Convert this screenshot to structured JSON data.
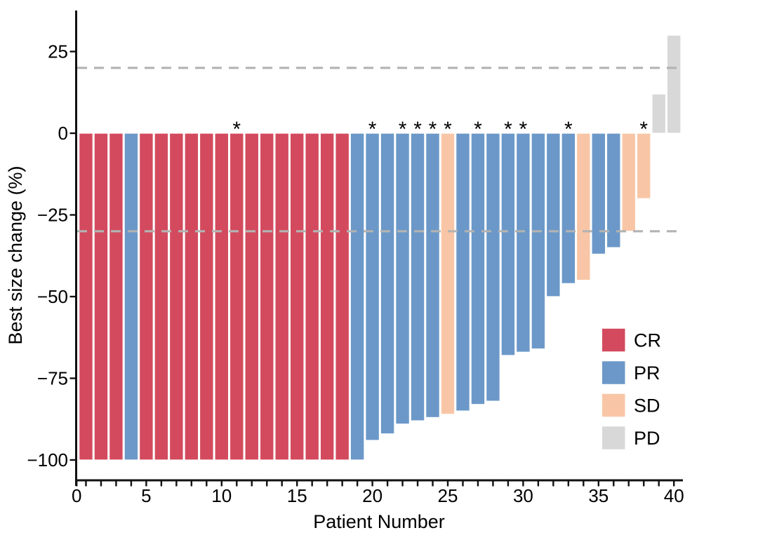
{
  "chart_data": {
    "type": "bar",
    "chart_kind": "waterfall",
    "title": "",
    "xlabel": "Patient Number",
    "ylabel": "Best size change (%)",
    "x_ticks_labeled": [
      0,
      5,
      10,
      15,
      20,
      25,
      30,
      35,
      40
    ],
    "x_tick_minor_every": 1,
    "xlim": [
      0,
      41
    ],
    "y_ticks": [
      25,
      0,
      -25,
      -50,
      -75,
      -100
    ],
    "ylim": [
      -100,
      35
    ],
    "grid": "off",
    "legend_position": "inside-bottom-right",
    "annotation_symbol": "*",
    "reference_lines": [
      {
        "y": 20,
        "style": "dashed",
        "color": "#B3B3B3"
      },
      {
        "y": -30,
        "style": "dashed",
        "color": "#B3B3B3"
      }
    ],
    "colors": {
      "CR": "#D34A5E",
      "PR": "#6B98C8",
      "SD": "#F8C6A6",
      "PD": "#D8D8D8"
    },
    "legend": [
      {
        "label": "CR",
        "color": "#D34A5E"
      },
      {
        "label": "PR",
        "color": "#6B98C8"
      },
      {
        "label": "SD",
        "color": "#F8C6A6"
      },
      {
        "label": "PD",
        "color": "#D8D8D8"
      }
    ],
    "patients": [
      {
        "patient": 1,
        "value": -100,
        "response": "CR",
        "annotated": false
      },
      {
        "patient": 2,
        "value": -100,
        "response": "CR",
        "annotated": false
      },
      {
        "patient": 3,
        "value": -100,
        "response": "CR",
        "annotated": false
      },
      {
        "patient": 4,
        "value": -100,
        "response": "PR",
        "annotated": false
      },
      {
        "patient": 5,
        "value": -100,
        "response": "CR",
        "annotated": false
      },
      {
        "patient": 6,
        "value": -100,
        "response": "CR",
        "annotated": false
      },
      {
        "patient": 7,
        "value": -100,
        "response": "CR",
        "annotated": false
      },
      {
        "patient": 8,
        "value": -100,
        "response": "CR",
        "annotated": false
      },
      {
        "patient": 9,
        "value": -100,
        "response": "CR",
        "annotated": false
      },
      {
        "patient": 10,
        "value": -100,
        "response": "CR",
        "annotated": false
      },
      {
        "patient": 11,
        "value": -100,
        "response": "CR",
        "annotated": true
      },
      {
        "patient": 12,
        "value": -100,
        "response": "CR",
        "annotated": false
      },
      {
        "patient": 13,
        "value": -100,
        "response": "CR",
        "annotated": false
      },
      {
        "patient": 14,
        "value": -100,
        "response": "CR",
        "annotated": false
      },
      {
        "patient": 15,
        "value": -100,
        "response": "CR",
        "annotated": false
      },
      {
        "patient": 16,
        "value": -100,
        "response": "CR",
        "annotated": false
      },
      {
        "patient": 17,
        "value": -100,
        "response": "CR",
        "annotated": false
      },
      {
        "patient": 18,
        "value": -100,
        "response": "CR",
        "annotated": false
      },
      {
        "patient": 19,
        "value": -100,
        "response": "PR",
        "annotated": false
      },
      {
        "patient": 20,
        "value": -94,
        "response": "PR",
        "annotated": true
      },
      {
        "patient": 21,
        "value": -92,
        "response": "PR",
        "annotated": false
      },
      {
        "patient": 22,
        "value": -89,
        "response": "PR",
        "annotated": true
      },
      {
        "patient": 23,
        "value": -88,
        "response": "PR",
        "annotated": true
      },
      {
        "patient": 24,
        "value": -87,
        "response": "PR",
        "annotated": true
      },
      {
        "patient": 25,
        "value": -86,
        "response": "SD",
        "annotated": true
      },
      {
        "patient": 26,
        "value": -85,
        "response": "PR",
        "annotated": false
      },
      {
        "patient": 27,
        "value": -83,
        "response": "PR",
        "annotated": true
      },
      {
        "patient": 28,
        "value": -82,
        "response": "PR",
        "annotated": false
      },
      {
        "patient": 29,
        "value": -68,
        "response": "PR",
        "annotated": true
      },
      {
        "patient": 30,
        "value": -67,
        "response": "PR",
        "annotated": true
      },
      {
        "patient": 31,
        "value": -66,
        "response": "PR",
        "annotated": false
      },
      {
        "patient": 32,
        "value": -50,
        "response": "PR",
        "annotated": false
      },
      {
        "patient": 33,
        "value": -46,
        "response": "PR",
        "annotated": true
      },
      {
        "patient": 34,
        "value": -45,
        "response": "SD",
        "annotated": false
      },
      {
        "patient": 35,
        "value": -37,
        "response": "PR",
        "annotated": false
      },
      {
        "patient": 36,
        "value": -35,
        "response": "PR",
        "annotated": false
      },
      {
        "patient": 37,
        "value": -30,
        "response": "SD",
        "annotated": false
      },
      {
        "patient": 38,
        "value": -20,
        "response": "SD",
        "annotated": true
      },
      {
        "patient": 39,
        "value": 12,
        "response": "PD",
        "annotated": false
      },
      {
        "patient": 40,
        "value": 30,
        "response": "PD",
        "annotated": false
      }
    ]
  }
}
